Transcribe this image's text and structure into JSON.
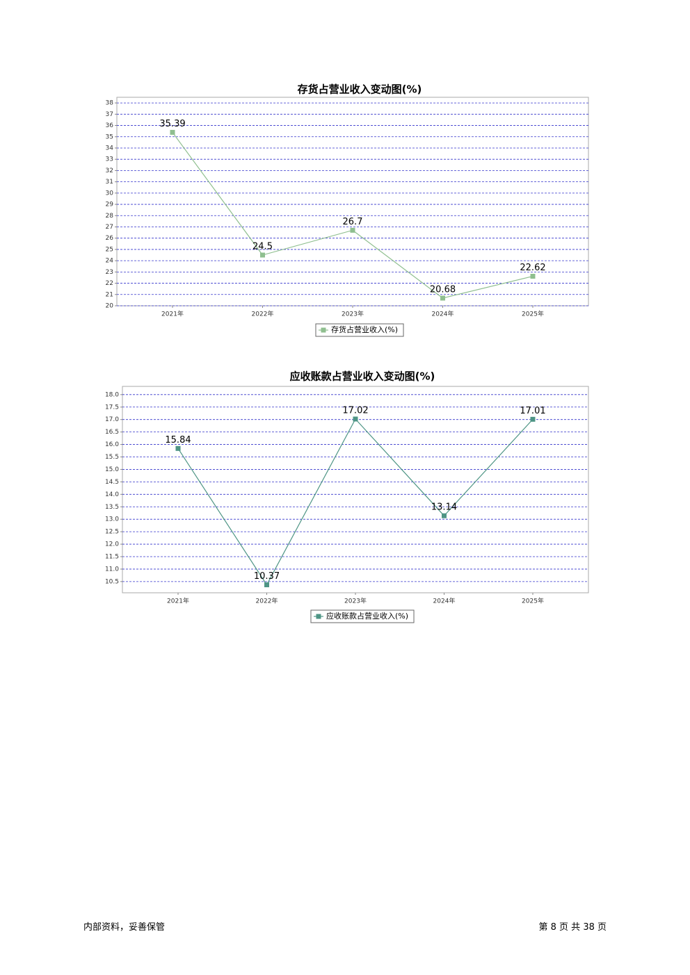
{
  "chart_data": [
    {
      "type": "line",
      "title": "存货占营业收入变动图(%)",
      "categories": [
        "2021年",
        "2022年",
        "2023年",
        "2024年",
        "2025年"
      ],
      "series": [
        {
          "name": "存货占营业收入(%)",
          "color": "#8fbf8f",
          "values": [
            35.39,
            24.5,
            26.7,
            20.68,
            22.62
          ]
        }
      ],
      "ylim": [
        20,
        38.5
      ],
      "yticks": [
        20,
        21,
        22,
        23,
        24,
        25,
        26,
        27,
        28,
        29,
        30,
        31,
        32,
        33,
        34,
        35,
        36,
        37,
        38
      ],
      "grid": true
    },
    {
      "type": "line",
      "title": "应收账款占营业收入变动图(%)",
      "categories": [
        "2021年",
        "2022年",
        "2023年",
        "2024年",
        "2025年"
      ],
      "series": [
        {
          "name": "应收账款占营业收入(%)",
          "color": "#4e9585",
          "values": [
            15.84,
            10.37,
            17.02,
            13.14,
            17.01
          ]
        }
      ],
      "ylim": [
        10.05,
        18.33
      ],
      "yticks": [
        10.5,
        {
          "value": 11,
          "label": "11.0"
        },
        11.5,
        {
          "value": 12,
          "label": "12.0"
        },
        12.5,
        {
          "value": 13,
          "label": "13.0"
        },
        13.5,
        {
          "value": 14,
          "label": "14.0"
        },
        14.5,
        {
          "value": 15,
          "label": "15.0"
        },
        15.5,
        {
          "value": 16,
          "label": "16.0"
        },
        16.5,
        {
          "value": 17,
          "label": "17.0"
        },
        17.5,
        {
          "value": 18,
          "label": "18.0"
        }
      ],
      "grid": true
    }
  ],
  "footer": {
    "left": "内部资料，妥善保管",
    "right": "第 8 页 共 38 页"
  }
}
